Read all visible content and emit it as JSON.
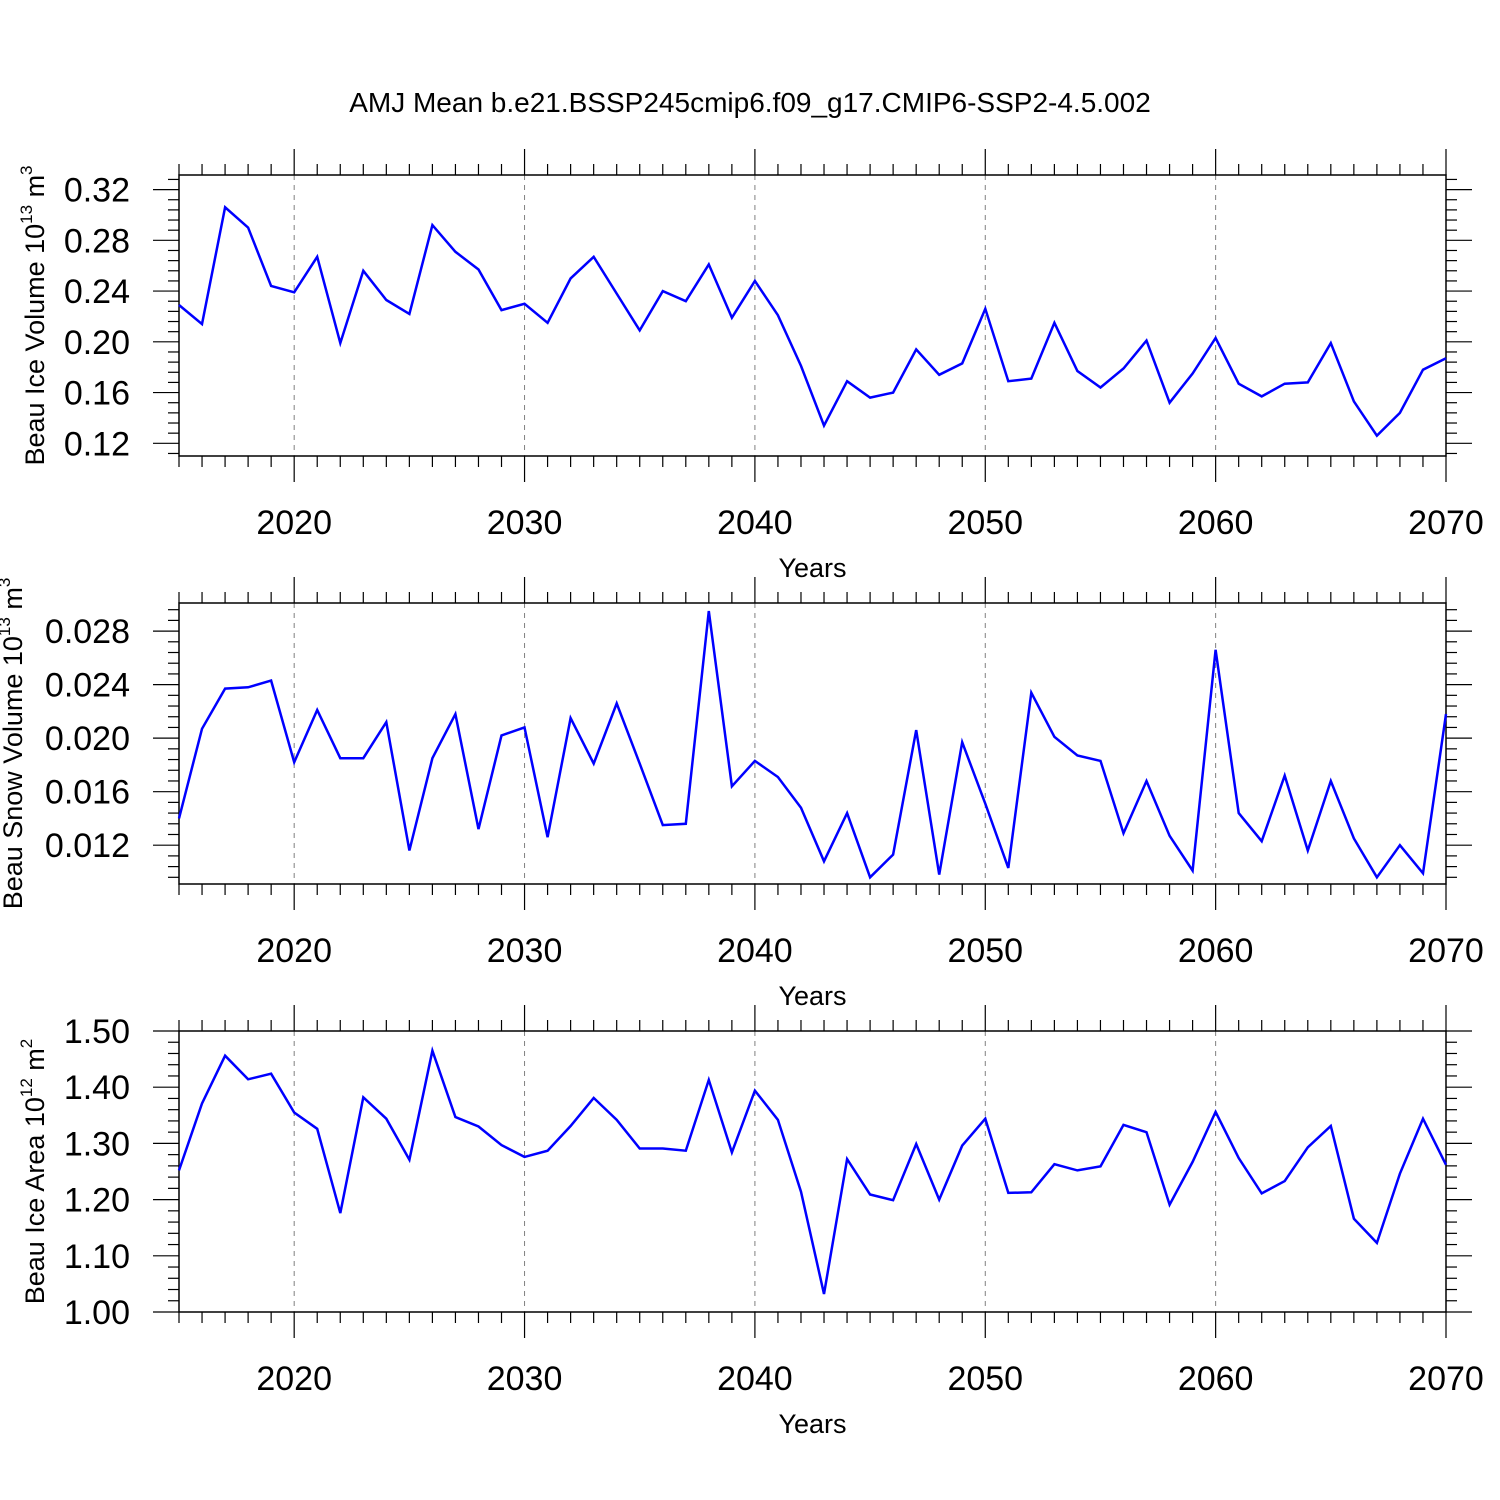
{
  "figure": {
    "title": "AMJ Mean b.e21.BSSP245cmip6.f09_g17.CMIP6-SSP2-4.5.002"
  },
  "colors": {
    "series": "#0000ff",
    "axes": "#000000",
    "vgrid": "#808080"
  },
  "chart_data": [
    {
      "type": "line",
      "xlabel": "Years",
      "ylabel": {
        "prefix": "Beau Ice Volume 10",
        "exp": "13",
        "unit": " m",
        "unit_exp": "3"
      },
      "xlim": [
        2015,
        2070
      ],
      "ylim": [
        0.11,
        0.3315
      ],
      "xticks": [
        2020,
        2030,
        2040,
        2050,
        2060,
        2070
      ],
      "yticks": [
        0.12,
        0.16,
        0.2,
        0.24,
        0.28,
        0.32
      ],
      "ytick_labels": [
        "0.12",
        "0.16",
        "0.20",
        "0.24",
        "0.28",
        "0.32"
      ],
      "vertical_grid": "dashed at major x ticks",
      "x": [
        2015,
        2016,
        2017,
        2018,
        2019,
        2020,
        2021,
        2022,
        2023,
        2024,
        2025,
        2026,
        2027,
        2028,
        2029,
        2030,
        2031,
        2032,
        2033,
        2034,
        2035,
        2036,
        2037,
        2038,
        2039,
        2040,
        2041,
        2042,
        2043,
        2044,
        2045,
        2046,
        2047,
        2048,
        2049,
        2050,
        2051,
        2052,
        2053,
        2054,
        2055,
        2056,
        2057,
        2058,
        2059,
        2060,
        2061,
        2062,
        2063,
        2064,
        2065,
        2066,
        2067,
        2068,
        2069,
        2070
      ],
      "y": [
        0.229,
        0.214,
        0.306,
        0.29,
        0.244,
        0.239,
        0.267,
        0.199,
        0.256,
        0.233,
        0.222,
        0.292,
        0.271,
        0.257,
        0.225,
        0.23,
        0.215,
        0.25,
        0.267,
        0.238,
        0.209,
        0.24,
        0.232,
        0.261,
        0.219,
        0.248,
        0.221,
        0.181,
        0.134,
        0.169,
        0.156,
        0.16,
        0.194,
        0.174,
        0.183,
        0.226,
        0.169,
        0.171,
        0.215,
        0.177,
        0.164,
        0.179,
        0.201,
        0.152,
        0.175,
        0.203,
        0.167,
        0.157,
        0.167,
        0.168,
        0.199,
        0.153,
        0.126,
        0.144,
        0.178,
        0.187
      ]
    },
    {
      "type": "line",
      "xlabel": "Years",
      "ylabel": {
        "prefix": "Beau Snow Volume 10",
        "exp": "13",
        "unit": " m",
        "unit_exp": "3"
      },
      "xlim": [
        2015,
        2070
      ],
      "ylim": [
        0.0091,
        0.0301
      ],
      "xticks": [
        2020,
        2030,
        2040,
        2050,
        2060,
        2070
      ],
      "yticks": [
        0.012,
        0.016,
        0.02,
        0.024,
        0.028
      ],
      "ytick_labels": [
        "0.012",
        "0.016",
        "0.020",
        "0.024",
        "0.028"
      ],
      "vertical_grid": "dashed at major x ticks",
      "x": [
        2015,
        2016,
        2017,
        2018,
        2019,
        2020,
        2021,
        2022,
        2023,
        2024,
        2025,
        2026,
        2027,
        2028,
        2029,
        2030,
        2031,
        2032,
        2033,
        2034,
        2035,
        2036,
        2037,
        2038,
        2039,
        2040,
        2041,
        2042,
        2043,
        2044,
        2045,
        2046,
        2047,
        2048,
        2049,
        2050,
        2051,
        2052,
        2053,
        2054,
        2055,
        2056,
        2057,
        2058,
        2059,
        2060,
        2061,
        2062,
        2063,
        2064,
        2065,
        2066,
        2067,
        2068,
        2069,
        2070
      ],
      "y": [
        0.014,
        0.0207,
        0.0237,
        0.0238,
        0.0243,
        0.0182,
        0.0221,
        0.0185,
        0.0185,
        0.0212,
        0.0116,
        0.0185,
        0.0218,
        0.0132,
        0.0202,
        0.0208,
        0.0126,
        0.0215,
        0.0181,
        0.0226,
        0.0181,
        0.0135,
        0.0136,
        0.0295,
        0.0164,
        0.0183,
        0.0171,
        0.0148,
        0.0108,
        0.0144,
        0.0096,
        0.0113,
        0.0206,
        0.0098,
        0.0197,
        0.0151,
        0.0103,
        0.0234,
        0.0201,
        0.0187,
        0.0183,
        0.0129,
        0.0168,
        0.0127,
        0.0101,
        0.0266,
        0.0144,
        0.0123,
        0.0172,
        0.0116,
        0.0168,
        0.0125,
        0.0096,
        0.012,
        0.0099,
        0.0218
      ]
    },
    {
      "type": "line",
      "xlabel": "Years",
      "ylabel": {
        "prefix": "Beau Ice Area 10",
        "exp": "12",
        "unit": " m",
        "unit_exp": "2"
      },
      "xlim": [
        2015,
        2070
      ],
      "ylim": [
        1.0,
        1.5
      ],
      "xticks": [
        2020,
        2030,
        2040,
        2050,
        2060,
        2070
      ],
      "yticks": [
        1.0,
        1.1,
        1.2,
        1.3,
        1.4,
        1.5
      ],
      "ytick_labels": [
        "1.00",
        "1.10",
        "1.20",
        "1.30",
        "1.40",
        "1.50"
      ],
      "vertical_grid": "dashed at major x ticks",
      "x": [
        2015,
        2016,
        2017,
        2018,
        2019,
        2020,
        2021,
        2022,
        2023,
        2024,
        2025,
        2026,
        2027,
        2028,
        2029,
        2030,
        2031,
        2032,
        2033,
        2034,
        2035,
        2036,
        2037,
        2038,
        2039,
        2040,
        2041,
        2042,
        2043,
        2044,
        2045,
        2046,
        2047,
        2048,
        2049,
        2050,
        2051,
        2052,
        2053,
        2054,
        2055,
        2056,
        2057,
        2058,
        2059,
        2060,
        2061,
        2062,
        2063,
        2064,
        2065,
        2066,
        2067,
        2068,
        2069,
        2070
      ],
      "y": [
        1.252,
        1.371,
        1.456,
        1.414,
        1.424,
        1.355,
        1.326,
        1.176,
        1.382,
        1.344,
        1.271,
        1.465,
        1.347,
        1.33,
        1.297,
        1.276,
        1.287,
        1.331,
        1.381,
        1.342,
        1.291,
        1.291,
        1.287,
        1.413,
        1.284,
        1.394,
        1.342,
        1.214,
        1.032,
        1.272,
        1.209,
        1.199,
        1.299,
        1.2,
        1.296,
        1.344,
        1.212,
        1.213,
        1.263,
        1.252,
        1.259,
        1.333,
        1.32,
        1.191,
        1.267,
        1.356,
        1.274,
        1.211,
        1.233,
        1.293,
        1.331,
        1.166,
        1.123,
        1.246,
        1.344,
        1.262
      ]
    }
  ]
}
